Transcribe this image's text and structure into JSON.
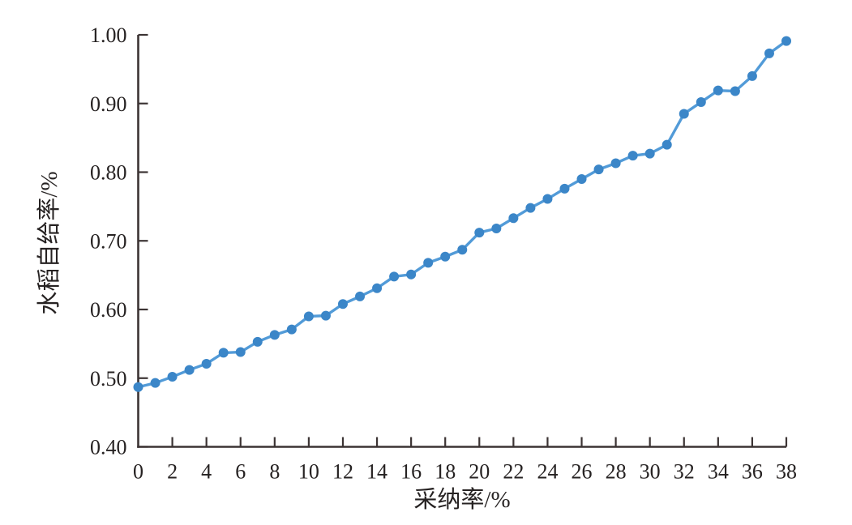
{
  "chart_data": {
    "type": "line",
    "x": [
      0,
      1,
      2,
      3,
      4,
      5,
      6,
      7,
      8,
      9,
      10,
      11,
      12,
      13,
      14,
      15,
      16,
      17,
      18,
      19,
      20,
      21,
      22,
      23,
      24,
      25,
      26,
      27,
      28,
      29,
      30,
      31,
      32,
      33,
      34,
      35,
      36,
      37,
      38
    ],
    "series": [
      {
        "name": "水稻自给率",
        "values": [
          0.487,
          0.493,
          0.502,
          0.512,
          0.521,
          0.537,
          0.538,
          0.553,
          0.563,
          0.571,
          0.59,
          0.591,
          0.608,
          0.619,
          0.631,
          0.648,
          0.651,
          0.668,
          0.677,
          0.687,
          0.712,
          0.718,
          0.733,
          0.748,
          0.761,
          0.776,
          0.79,
          0.804,
          0.813,
          0.824,
          0.827,
          0.84,
          0.885,
          0.902,
          0.919,
          0.918,
          0.94,
          0.973,
          0.991
        ]
      }
    ],
    "xlabel": "采纳率/%",
    "ylabel": "水稻自给率/%",
    "xlim": [
      0,
      38
    ],
    "ylim": [
      0.4,
      1.0
    ],
    "xticks": [
      0,
      2,
      4,
      6,
      8,
      10,
      12,
      14,
      16,
      18,
      20,
      22,
      24,
      26,
      28,
      30,
      32,
      34,
      36,
      38
    ],
    "yticks": [
      0.4,
      0.5,
      0.6,
      0.7,
      0.8,
      0.9,
      1.0
    ],
    "ytick_decimals": 2,
    "grid": false,
    "legend": "none",
    "line_color": "#529BD8",
    "marker_color": "#3B86C8",
    "axis_color": "#3C3434",
    "text_color": "#262222"
  }
}
